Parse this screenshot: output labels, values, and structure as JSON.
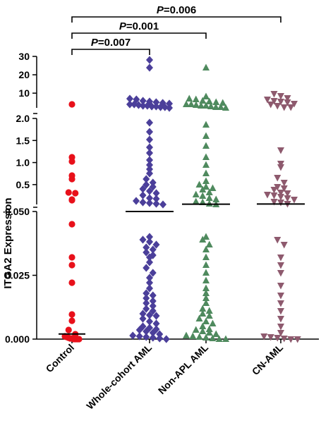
{
  "chart_data": {
    "type": "scatter",
    "subtype": "dot-plot with median lines, broken y-axis",
    "ylabel": "ITGA2 Expression",
    "categories": [
      "Control",
      "Whole-cohort AML",
      "Non-APL AML",
      "CN-AML"
    ],
    "colors": {
      "Control": "#e8101a",
      "Whole-cohort AML": "#4b3f9a",
      "Non-APL AML": "#4f8a5e",
      "CN-AML": "#8e5a6e"
    },
    "markers": {
      "Control": "circle",
      "Whole-cohort AML": "diamond",
      "Non-APL AML": "triangle-up",
      "CN-AML": "triangle-down"
    },
    "y_segments": [
      {
        "range": [
          0,
          0.05
        ],
        "ticks": [
          0.0,
          0.025,
          0.05
        ],
        "tick_labels": [
          "0.000",
          "0.025",
          "0.050"
        ]
      },
      {
        "range": [
          0.05,
          2.0
        ],
        "ticks": [
          0.5,
          1.0,
          1.5,
          2.0
        ],
        "tick_labels": [
          "0.5",
          "1.0",
          "1.5",
          "2.0"
        ]
      },
      {
        "range": [
          2.0,
          30
        ],
        "ticks": [
          10,
          20,
          30
        ],
        "tick_labels": [
          "10",
          "20",
          "30"
        ]
      }
    ],
    "significance": [
      {
        "label_p": "P",
        "label_value": "=0.007",
        "from": "Control",
        "to": "Whole-cohort AML"
      },
      {
        "label_p": "P",
        "label_value": "=0.001",
        "from": "Control",
        "to": "Non-APL AML"
      },
      {
        "label_p": "P",
        "label_value": "=0.006",
        "from": "Control",
        "to": "CN-AML"
      }
    ],
    "medians": {
      "Control": 0.002,
      "Whole-cohort AML": 0.05,
      "Non-APL AML": 0.055,
      "CN-AML": 0.06
    },
    "series": [
      {
        "name": "Control",
        "values": [
          4,
          1.12,
          1.02,
          0.7,
          0.62,
          0.32,
          0.3,
          0.16,
          0.14,
          0.045,
          0.032,
          0.029,
          0.022,
          0.0098,
          0.0072,
          0.0035,
          0.0018,
          0.001,
          0.0008,
          0.0005,
          0.0003,
          0.0002,
          0.0001,
          0.0001,
          0.0,
          0.0
        ]
      },
      {
        "name": "Whole-cohort AML",
        "values": [
          28,
          24,
          7,
          6.5,
          6,
          5.5,
          5,
          4.5,
          4.2,
          4,
          3.8,
          3.5,
          3.2,
          3,
          2.8,
          2.6,
          2.4,
          2.2,
          2.1,
          1.9,
          1.7,
          1.52,
          1.35,
          1.22,
          1.05,
          0.95,
          0.85,
          0.75,
          0.62,
          0.55,
          0.5,
          0.45,
          0.4,
          0.35,
          0.3,
          0.25,
          0.2,
          0.17,
          0.13,
          0.1,
          0.08,
          0.06,
          0.055,
          0.04,
          0.039,
          0.038,
          0.037,
          0.036,
          0.035,
          0.034,
          0.033,
          0.032,
          0.03,
          0.028,
          0.026,
          0.024,
          0.022,
          0.02,
          0.018,
          0.017,
          0.016,
          0.015,
          0.014,
          0.013,
          0.012,
          0.011,
          0.01,
          0.0095,
          0.009,
          0.008,
          0.007,
          0.006,
          0.005,
          0.0045,
          0.004,
          0.0035,
          0.003,
          0.0025,
          0.002,
          0.0015,
          0.001,
          0.0008,
          0.0005,
          0.0003,
          0.0001
        ]
      },
      {
        "name": "Non-APL AML",
        "values": [
          24,
          8,
          7,
          6.5,
          6,
          5.5,
          5,
          4.5,
          4,
          3.8,
          3.5,
          3.2,
          3,
          2.7,
          2.5,
          2.3,
          2.1,
          1.85,
          1.6,
          1.38,
          1.12,
          0.95,
          0.75,
          0.58,
          0.5,
          0.45,
          0.42,
          0.38,
          0.32,
          0.28,
          0.24,
          0.2,
          0.16,
          0.12,
          0.09,
          0.065,
          0.055,
          0.04,
          0.039,
          0.037,
          0.035,
          0.032,
          0.029,
          0.026,
          0.023,
          0.02,
          0.018,
          0.016,
          0.014,
          0.012,
          0.011,
          0.01,
          0.009,
          0.008,
          0.007,
          0.006,
          0.005,
          0.004,
          0.0035,
          0.003,
          0.0025,
          0.002,
          0.0015,
          0.001,
          0.0008,
          0.0005,
          0.0003,
          0.0001,
          0.0
        ]
      },
      {
        "name": "CN-AML",
        "values": [
          9.5,
          8.5,
          7.5,
          6.5,
          6,
          5.5,
          5,
          4.2,
          3.8,
          3,
          2.5,
          2.2,
          1.28,
          0.98,
          0.9,
          0.65,
          0.55,
          0.45,
          0.42,
          0.38,
          0.32,
          0.3,
          0.28,
          0.25,
          0.22,
          0.2,
          0.16,
          0.12,
          0.1,
          0.07,
          0.039,
          0.037,
          0.032,
          0.029,
          0.026,
          0.021,
          0.017,
          0.014,
          0.011,
          0.008,
          0.005,
          0.0025,
          0.001,
          0.0008,
          0.0005,
          0.0003,
          0.0001,
          0.0
        ]
      }
    ]
  }
}
